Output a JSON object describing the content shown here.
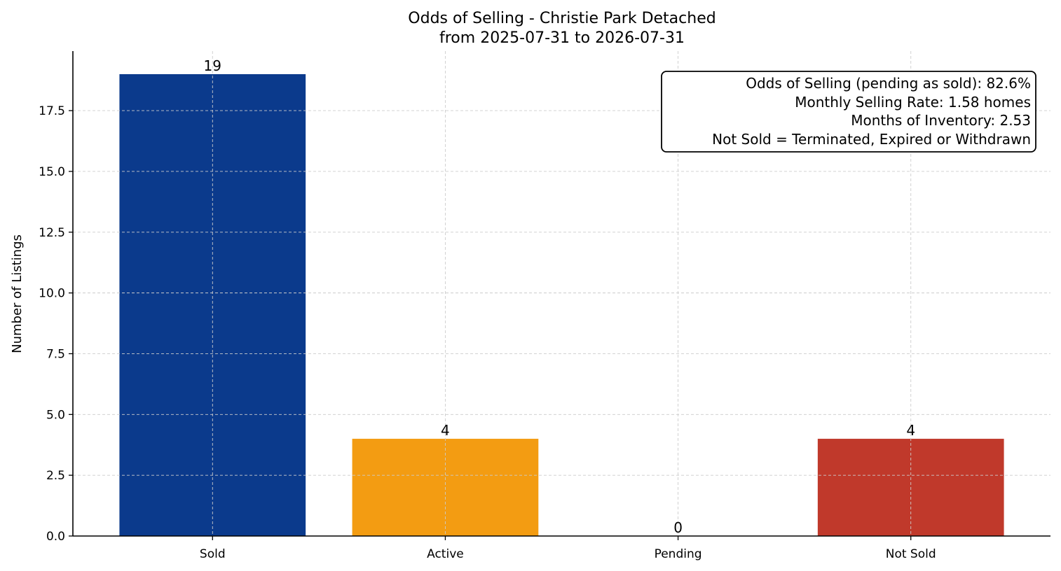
{
  "chart_data": {
    "type": "bar",
    "title": "Odds of Selling - Christie Park Detached",
    "subtitle": "from 2025-07-31 to 2026-07-31",
    "xlabel": "",
    "ylabel": "Number of Listings",
    "categories": [
      "Sold",
      "Active",
      "Pending",
      "Not Sold"
    ],
    "values": [
      19,
      4,
      0,
      4
    ],
    "value_labels": [
      "19",
      "4",
      "0",
      "4"
    ],
    "colors": [
      "#0b3a8c",
      "#f39c12",
      "#f39c12",
      "#c0392b"
    ],
    "ylim": [
      0,
      19.95
    ],
    "yticks": [
      0,
      2.5,
      5,
      7.5,
      10,
      12.5,
      15,
      17.5
    ],
    "ytick_labels": [
      "0.0",
      "2.5",
      "5.0",
      "7.5",
      "10.0",
      "12.5",
      "15.0",
      "17.5"
    ],
    "grid": true,
    "info_box": {
      "position": "top-right",
      "lines": [
        "Odds of Selling (pending as sold): 82.6%",
        "Monthly Selling Rate: 1.58 homes",
        "Months of Inventory: 2.53",
        "Not Sold = Terminated, Expired or Withdrawn"
      ]
    }
  }
}
